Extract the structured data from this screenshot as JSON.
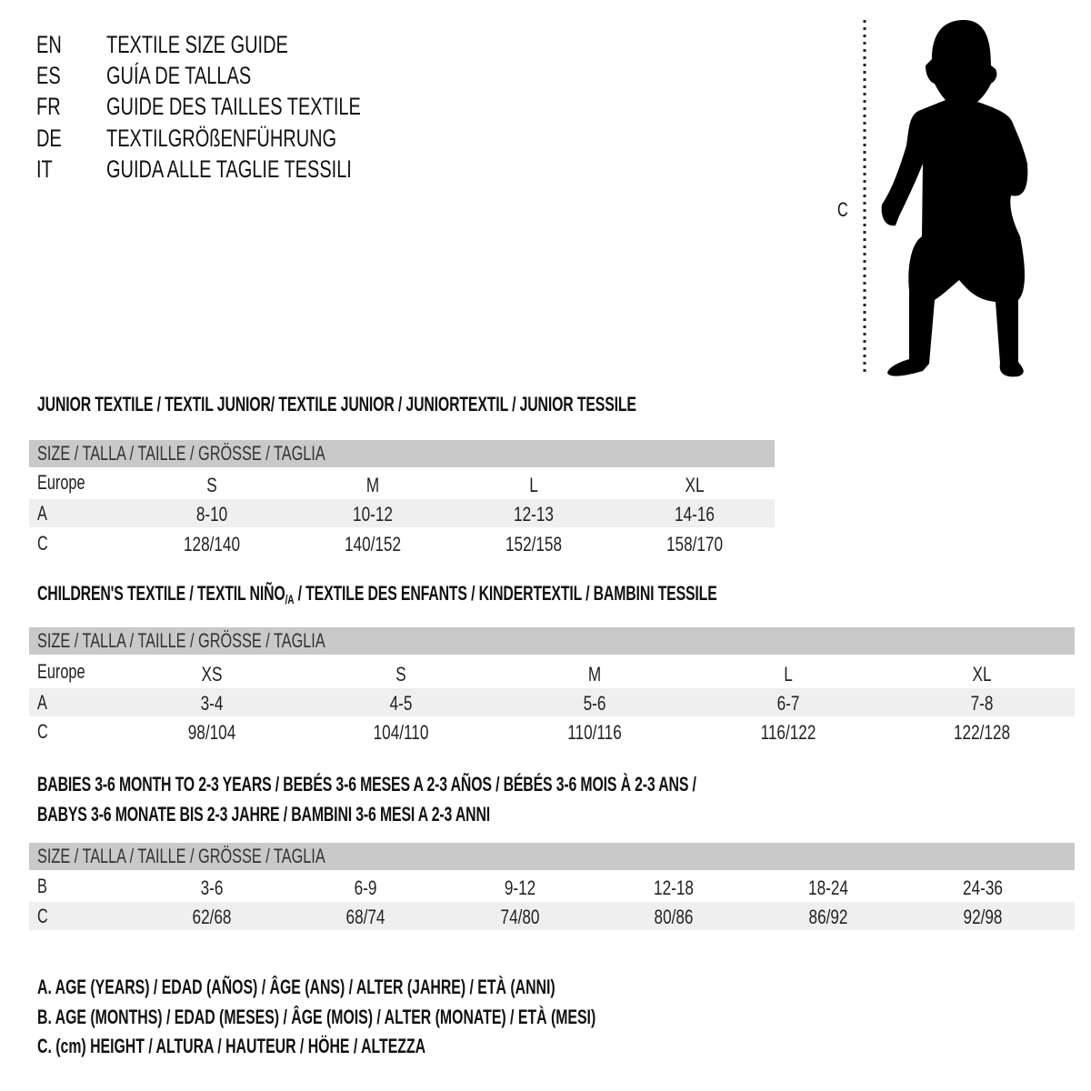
{
  "languages": [
    {
      "code": "EN",
      "title": "TEXTILE SIZE GUIDE"
    },
    {
      "code": "ES",
      "title": "GUÍA DE TALLAS"
    },
    {
      "code": "FR",
      "title": "GUIDE DES TAILLES TEXTILE"
    },
    {
      "code": "DE",
      "title": "TEXTILGRÖßENFÜHRUNG"
    },
    {
      "code": "IT",
      "title": "GUIDA ALLE TAGLIE TESSILI"
    }
  ],
  "figure": {
    "height_label": "C"
  },
  "size_header": "SIZE / TALLA / TAILLE / GRÖSSE / TAGLIA",
  "junior": {
    "title": "JUNIOR TEXTILE / TEXTIL JUNIOR/ TEXTILE JUNIOR / JUNIORTEXTIL / JUNIOR TESSILE",
    "rows": [
      {
        "label": "Europe",
        "values": [
          "S",
          "M",
          "L",
          "XL"
        ]
      },
      {
        "label": "A",
        "values": [
          "8-10",
          "10-12",
          "12-13",
          "14-16"
        ]
      },
      {
        "label": "C",
        "values": [
          "128/140",
          "140/152",
          "152/158",
          "158/170"
        ]
      }
    ]
  },
  "children": {
    "title_part1": "CHILDREN'S TEXTILE / TEXTIL NIÑO",
    "title_sub": "/A",
    "title_part2": " / TEXTILE DES ENFANTS / KINDERTEXTIL / BAMBINI TESSILE",
    "rows": [
      {
        "label": "Europe",
        "values": [
          "XS",
          "S",
          "M",
          "L",
          "XL"
        ]
      },
      {
        "label": "A",
        "values": [
          "3-4",
          "4-5",
          "5-6",
          "6-7",
          "7-8"
        ]
      },
      {
        "label": "C",
        "values": [
          "98/104",
          "104/110",
          "110/116",
          "116/122",
          "122/128"
        ]
      }
    ]
  },
  "babies": {
    "title_line1": "BABIES 3-6 MONTH TO 2-3 YEARS / BEBÉS 3-6 MESES A 2-3 AÑOS / BÉBÉS 3-6 MOIS À 2-3 ANS /",
    "title_line2": "BABYS 3-6 MONATE BIS 2-3 JAHRE / BAMBINI 3-6 MESI A 2-3 ANNI",
    "rows": [
      {
        "label": "B",
        "values": [
          "3-6",
          "6-9",
          "9-12",
          "12-18",
          "18-24",
          "24-36"
        ]
      },
      {
        "label": "C",
        "values": [
          "62/68",
          "68/74",
          "74/80",
          "80/86",
          "86/92",
          "92/98"
        ]
      }
    ]
  },
  "legend": [
    "A. AGE (YEARS) / EDAD (AÑOS) / ÂGE (ANS) / ALTER (JAHRE) / ETÀ (ANNI)",
    "B. AGE (MONTHS) / EDAD (MESES) / ÂGE (MOIS) / ALTER (MONATE) / ETÀ (MESI)",
    "C. (cm) HEIGHT / ALTURA / HAUTEUR / HÖHE / ALTEZZA"
  ]
}
